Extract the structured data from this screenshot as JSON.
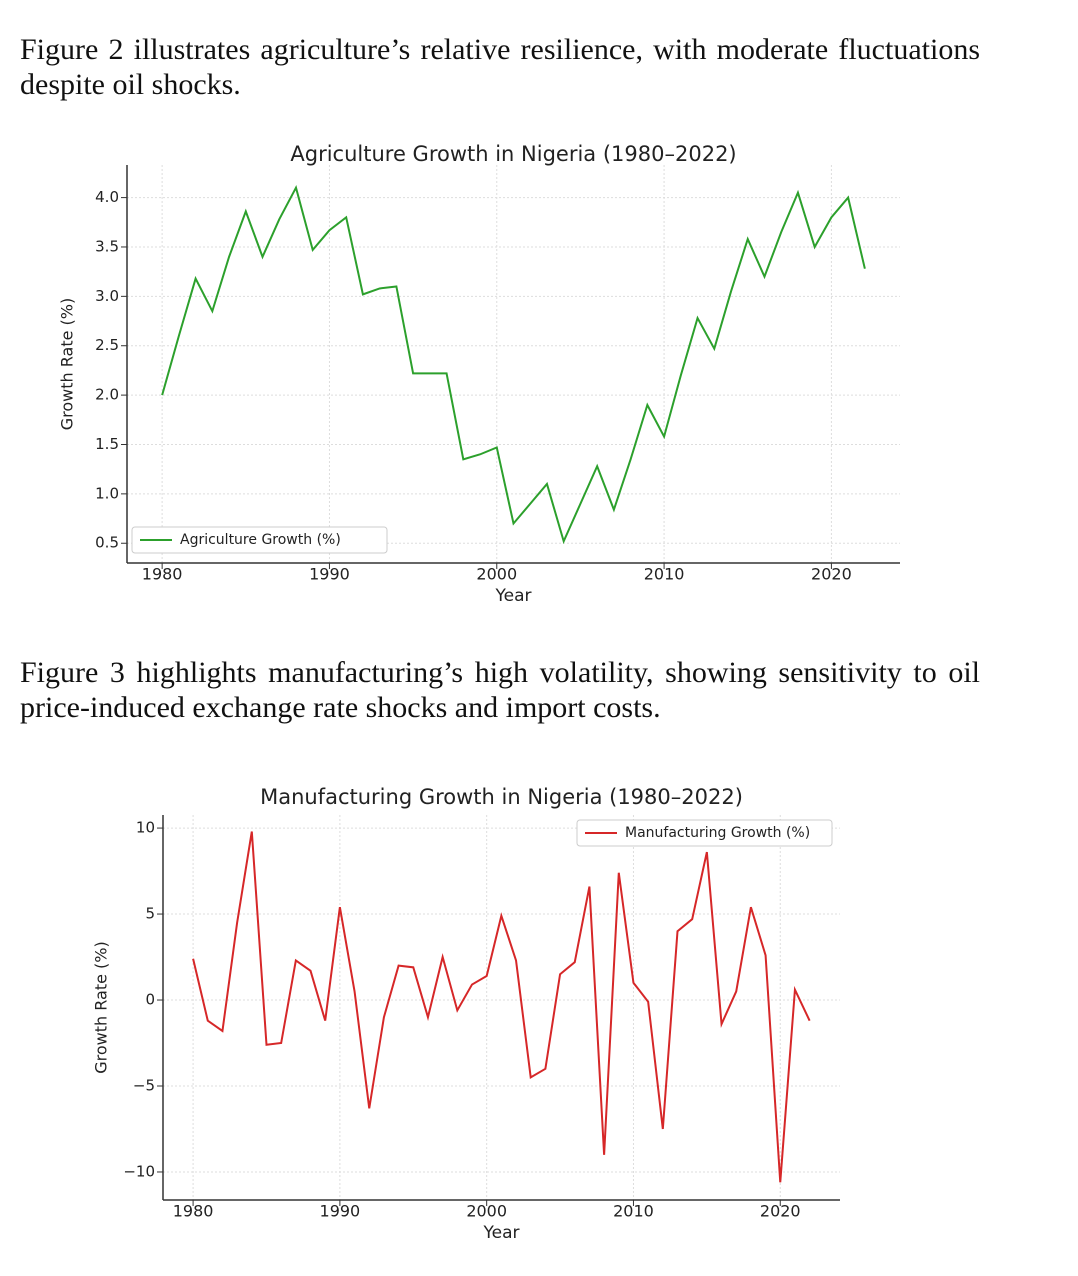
{
  "paragraphs": [
    "Figure 2 illustrates agriculture’s relative resilience, with moderate fluctuations despite oil shocks.",
    "Figure 3 highlights manufacturing’s high volatility, showing sensitivity to oil price-induced exchange rate shocks and import costs."
  ],
  "chart_data": [
    {
      "type": "line",
      "title": "Agriculture Growth in Nigeria (1980–2022)",
      "x_label": "Year",
      "y_label": "Growth Rate (%)",
      "x": [
        1980,
        1981,
        1982,
        1983,
        1984,
        1985,
        1986,
        1987,
        1988,
        1989,
        1990,
        1991,
        1992,
        1993,
        1994,
        1995,
        1996,
        1997,
        1998,
        1999,
        2000,
        2001,
        2002,
        2003,
        2004,
        2005,
        2006,
        2007,
        2008,
        2009,
        2010,
        2011,
        2012,
        2013,
        2014,
        2015,
        2016,
        2017,
        2018,
        2019,
        2020,
        2021,
        2022
      ],
      "series": [
        {
          "name": "Agriculture Growth (%)",
          "color": "#2ca02c",
          "values": [
            2.0,
            2.6,
            3.18,
            2.85,
            3.4,
            3.86,
            3.4,
            3.78,
            4.1,
            3.47,
            3.67,
            3.8,
            3.02,
            3.08,
            3.1,
            2.22,
            2.22,
            2.22,
            1.35,
            1.4,
            1.47,
            0.7,
            0.9,
            1.1,
            0.52,
            0.9,
            1.28,
            0.84,
            1.35,
            1.9,
            1.58,
            2.2,
            2.78,
            2.47,
            3.05,
            3.58,
            3.2,
            3.65,
            4.05,
            3.5,
            3.8,
            4.0,
            3.28
          ]
        }
      ],
      "xlim": [
        1977.9,
        2024.1
      ],
      "xticks": [
        1980,
        1990,
        2000,
        2010,
        2020
      ],
      "ylim": [
        0.3,
        4.33
      ],
      "yticks": [
        0.5,
        {
          "value": 1,
          "label": "1.0"
        },
        1.5,
        {
          "value": 2,
          "label": "2.0"
        },
        2.5,
        {
          "value": 3,
          "label": "3.0"
        },
        3.5,
        {
          "value": 4,
          "label": "4.0"
        }
      ],
      "grid": true,
      "legend": "lower left"
    },
    {
      "type": "line",
      "title": "Manufacturing Growth in Nigeria (1980–2022)",
      "x_label": "Year",
      "y_label": "Growth Rate (%)",
      "x": [
        1980,
        1981,
        1982,
        1983,
        1984,
        1985,
        1986,
        1987,
        1988,
        1989,
        1990,
        1991,
        1992,
        1993,
        1994,
        1995,
        1996,
        1997,
        1998,
        1999,
        2000,
        2001,
        2002,
        2003,
        2004,
        2005,
        2006,
        2007,
        2008,
        2009,
        2010,
        2011,
        2012,
        2013,
        2014,
        2015,
        2016,
        2017,
        2018,
        2019,
        2020,
        2021,
        2022
      ],
      "series": [
        {
          "name": "Manufacturing Growth (%)",
          "color": "#d62728",
          "values": [
            2.4,
            -1.2,
            -1.8,
            4.5,
            9.8,
            -2.6,
            -2.5,
            2.3,
            1.7,
            -1.2,
            5.4,
            0.5,
            -6.3,
            -1.0,
            2.0,
            1.9,
            -1.0,
            2.5,
            -0.6,
            0.9,
            1.4,
            4.9,
            2.3,
            -4.5,
            -4.0,
            1.5,
            2.2,
            6.6,
            -9.0,
            7.4,
            1.0,
            -0.1,
            -7.5,
            4.0,
            4.7,
            8.6,
            -1.4,
            0.5,
            5.4,
            2.6,
            -10.6,
            0.6,
            -1.2
          ]
        }
      ],
      "xlim": [
        1977.95,
        2024.07
      ],
      "xticks": [
        1980,
        1990,
        2000,
        2010,
        2020
      ],
      "ylim": [
        -11.63,
        10.76
      ],
      "yticks": [
        {
          "value": -10,
          "label": "−10"
        },
        {
          "value": -5,
          "label": "−5"
        },
        0,
        5,
        10
      ],
      "grid": true,
      "legend": "upper right"
    }
  ]
}
